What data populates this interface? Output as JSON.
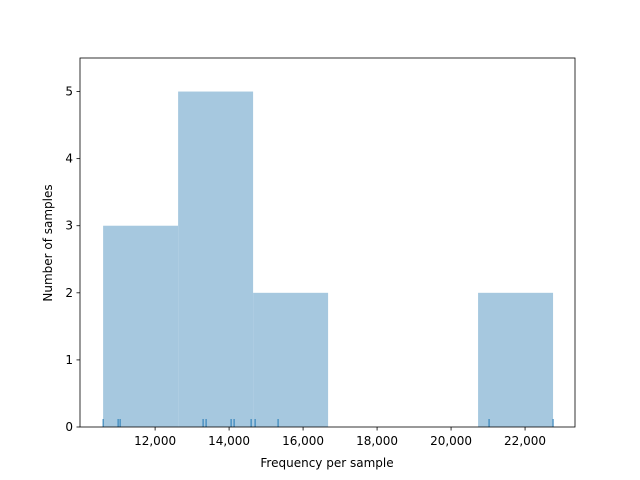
{
  "chart_data": {
    "type": "histogram",
    "xlabel": "Frequency per sample",
    "ylabel": "Number of samples",
    "bins": [
      10595,
      12622,
      14649,
      16676,
      18703,
      20730,
      22757
    ],
    "counts": [
      3,
      5,
      2,
      0,
      0,
      2
    ],
    "rug": [
      10595,
      11000,
      11054,
      13297,
      13378,
      14054,
      14135,
      14595,
      14703,
      15324,
      21027,
      22757
    ],
    "color": "#a6c8df",
    "rug_color": "#1f77b4",
    "xlim": [
      9970,
      23350
    ],
    "ylim": [
      0,
      5.5
    ],
    "xticks": [
      {
        "value": 12000,
        "label": "12,000"
      },
      {
        "value": 14000,
        "label": "14,000"
      },
      {
        "value": 16000,
        "label": "16,000"
      },
      {
        "value": 18000,
        "label": "18,000"
      },
      {
        "value": 20000,
        "label": "20,000"
      },
      {
        "value": 22000,
        "label": "22,000"
      }
    ],
    "yticks": [
      0,
      1,
      2,
      3,
      4,
      5
    ]
  }
}
